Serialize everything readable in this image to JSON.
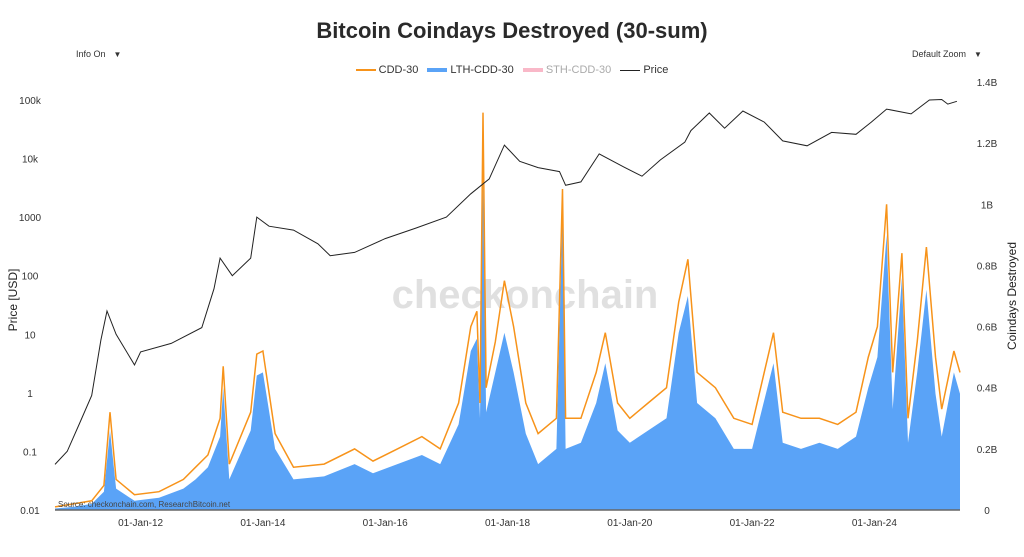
{
  "chart_data": {
    "type": "area",
    "title": "Bitcoin Coindays Destroyed (30-sum)",
    "controls": {
      "info": "Info On",
      "zoom": "Default Zoom"
    },
    "ylabel_left": "Price [USD]",
    "ylabel_right": "Coindays Destroyed",
    "y_left_scale": "log",
    "y_left_range": [
      0.01,
      100000
    ],
    "y_left_ticks": [
      "0.01",
      "0.1",
      "1",
      "10",
      "100",
      "1000",
      "10k",
      "100k"
    ],
    "y_right_range": [
      0,
      1.4
    ],
    "y_right_unit": "B",
    "y_right_ticks": [
      "0",
      "0.2B",
      "0.4B",
      "0.6B",
      "0.8B",
      "1B",
      "1.2B",
      "1.4B"
    ],
    "x_range": [
      2010.6,
      2025.4
    ],
    "x_ticks": [
      "01-Jan-12",
      "01-Jan-14",
      "01-Jan-16",
      "01-Jan-18",
      "01-Jan-20",
      "01-Jan-22",
      "01-Jan-24"
    ],
    "x_tick_years": [
      2012,
      2014,
      2016,
      2018,
      2020,
      2022,
      2024
    ],
    "legend_placement": "top-center",
    "watermark": "checkonchain",
    "source": "Source: checkonchain.com, ResearchBitcoin.net",
    "series": [
      {
        "name": "CDD-30",
        "color": "#f7931a",
        "axis": "right",
        "style": "line",
        "points": [
          [
            2010.6,
            0.01
          ],
          [
            2010.9,
            0.02
          ],
          [
            2011.2,
            0.03
          ],
          [
            2011.4,
            0.08
          ],
          [
            2011.5,
            0.32
          ],
          [
            2011.6,
            0.1
          ],
          [
            2011.9,
            0.05
          ],
          [
            2012.3,
            0.06
          ],
          [
            2012.7,
            0.1
          ],
          [
            2012.9,
            0.14
          ],
          [
            2013.1,
            0.18
          ],
          [
            2013.3,
            0.3
          ],
          [
            2013.35,
            0.47
          ],
          [
            2013.45,
            0.15
          ],
          [
            2013.8,
            0.32
          ],
          [
            2013.9,
            0.51
          ],
          [
            2014.0,
            0.52
          ],
          [
            2014.2,
            0.25
          ],
          [
            2014.5,
            0.14
          ],
          [
            2015.0,
            0.15
          ],
          [
            2015.5,
            0.2
          ],
          [
            2015.8,
            0.16
          ],
          [
            2016.2,
            0.2
          ],
          [
            2016.6,
            0.24
          ],
          [
            2016.9,
            0.2
          ],
          [
            2017.2,
            0.35
          ],
          [
            2017.4,
            0.6
          ],
          [
            2017.5,
            0.65
          ],
          [
            2017.55,
            0.35
          ],
          [
            2017.6,
            1.3
          ],
          [
            2017.65,
            0.4
          ],
          [
            2017.8,
            0.55
          ],
          [
            2017.95,
            0.75
          ],
          [
            2018.1,
            0.6
          ],
          [
            2018.3,
            0.35
          ],
          [
            2018.5,
            0.25
          ],
          [
            2018.8,
            0.3
          ],
          [
            2018.9,
            1.05
          ],
          [
            2018.95,
            0.3
          ],
          [
            2019.2,
            0.3
          ],
          [
            2019.45,
            0.45
          ],
          [
            2019.6,
            0.58
          ],
          [
            2019.8,
            0.35
          ],
          [
            2020.0,
            0.3
          ],
          [
            2020.3,
            0.35
          ],
          [
            2020.6,
            0.4
          ],
          [
            2020.8,
            0.68
          ],
          [
            2020.95,
            0.82
          ],
          [
            2021.1,
            0.45
          ],
          [
            2021.4,
            0.4
          ],
          [
            2021.7,
            0.3
          ],
          [
            2022.0,
            0.28
          ],
          [
            2022.35,
            0.58
          ],
          [
            2022.5,
            0.32
          ],
          [
            2022.8,
            0.3
          ],
          [
            2023.1,
            0.3
          ],
          [
            2023.4,
            0.28
          ],
          [
            2023.7,
            0.32
          ],
          [
            2023.9,
            0.5
          ],
          [
            2024.05,
            0.6
          ],
          [
            2024.2,
            1.0
          ],
          [
            2024.3,
            0.45
          ],
          [
            2024.45,
            0.84
          ],
          [
            2024.55,
            0.3
          ],
          [
            2024.7,
            0.55
          ],
          [
            2024.85,
            0.86
          ],
          [
            2025.0,
            0.5
          ],
          [
            2025.1,
            0.33
          ],
          [
            2025.3,
            0.52
          ],
          [
            2025.4,
            0.45
          ]
        ]
      },
      {
        "name": "LTH-CDD-30",
        "color": "#5aa3f7",
        "axis": "right",
        "style": "area",
        "points": [
          [
            2010.6,
            0.005
          ],
          [
            2010.9,
            0.01
          ],
          [
            2011.2,
            0.02
          ],
          [
            2011.4,
            0.06
          ],
          [
            2011.5,
            0.26
          ],
          [
            2011.6,
            0.07
          ],
          [
            2011.9,
            0.03
          ],
          [
            2012.3,
            0.04
          ],
          [
            2012.7,
            0.07
          ],
          [
            2012.9,
            0.1
          ],
          [
            2013.1,
            0.14
          ],
          [
            2013.3,
            0.24
          ],
          [
            2013.35,
            0.4
          ],
          [
            2013.45,
            0.1
          ],
          [
            2013.8,
            0.26
          ],
          [
            2013.9,
            0.44
          ],
          [
            2014.0,
            0.45
          ],
          [
            2014.2,
            0.2
          ],
          [
            2014.5,
            0.1
          ],
          [
            2015.0,
            0.11
          ],
          [
            2015.5,
            0.15
          ],
          [
            2015.8,
            0.12
          ],
          [
            2016.2,
            0.15
          ],
          [
            2016.6,
            0.18
          ],
          [
            2016.9,
            0.15
          ],
          [
            2017.2,
            0.28
          ],
          [
            2017.4,
            0.52
          ],
          [
            2017.5,
            0.56
          ],
          [
            2017.55,
            0.3
          ],
          [
            2017.6,
            1.12
          ],
          [
            2017.65,
            0.32
          ],
          [
            2017.8,
            0.45
          ],
          [
            2017.95,
            0.58
          ],
          [
            2018.1,
            0.45
          ],
          [
            2018.3,
            0.25
          ],
          [
            2018.5,
            0.15
          ],
          [
            2018.8,
            0.2
          ],
          [
            2018.9,
            0.98
          ],
          [
            2018.95,
            0.2
          ],
          [
            2019.2,
            0.22
          ],
          [
            2019.45,
            0.35
          ],
          [
            2019.6,
            0.48
          ],
          [
            2019.8,
            0.26
          ],
          [
            2020.0,
            0.22
          ],
          [
            2020.3,
            0.26
          ],
          [
            2020.6,
            0.3
          ],
          [
            2020.8,
            0.58
          ],
          [
            2020.95,
            0.7
          ],
          [
            2021.1,
            0.35
          ],
          [
            2021.4,
            0.3
          ],
          [
            2021.7,
            0.2
          ],
          [
            2022.0,
            0.2
          ],
          [
            2022.35,
            0.48
          ],
          [
            2022.5,
            0.22
          ],
          [
            2022.8,
            0.2
          ],
          [
            2023.1,
            0.22
          ],
          [
            2023.4,
            0.2
          ],
          [
            2023.7,
            0.24
          ],
          [
            2023.9,
            0.4
          ],
          [
            2024.05,
            0.5
          ],
          [
            2024.2,
            0.9
          ],
          [
            2024.3,
            0.33
          ],
          [
            2024.45,
            0.76
          ],
          [
            2024.55,
            0.22
          ],
          [
            2024.7,
            0.45
          ],
          [
            2024.85,
            0.72
          ],
          [
            2025.0,
            0.38
          ],
          [
            2025.1,
            0.24
          ],
          [
            2025.3,
            0.45
          ],
          [
            2025.4,
            0.38
          ]
        ]
      },
      {
        "name": "STH-CDD-30",
        "color": "#f9b8c8",
        "axis": "right",
        "style": "hidden",
        "points": []
      },
      {
        "name": "Price",
        "color": "#222222",
        "axis": "left",
        "style": "line",
        "points": [
          [
            2010.6,
            0.06
          ],
          [
            2010.8,
            0.1
          ],
          [
            2011.0,
            0.3
          ],
          [
            2011.2,
            0.9
          ],
          [
            2011.35,
            8
          ],
          [
            2011.45,
            25
          ],
          [
            2011.6,
            10
          ],
          [
            2011.9,
            3
          ],
          [
            2012.0,
            5
          ],
          [
            2012.5,
            7
          ],
          [
            2013.0,
            13
          ],
          [
            2013.2,
            60
          ],
          [
            2013.3,
            200
          ],
          [
            2013.5,
            100
          ],
          [
            2013.8,
            200
          ],
          [
            2013.9,
            1000
          ],
          [
            2014.1,
            700
          ],
          [
            2014.5,
            600
          ],
          [
            2014.9,
            350
          ],
          [
            2015.1,
            220
          ],
          [
            2015.5,
            250
          ],
          [
            2016.0,
            430
          ],
          [
            2016.5,
            650
          ],
          [
            2017.0,
            1000
          ],
          [
            2017.4,
            2500
          ],
          [
            2017.7,
            4500
          ],
          [
            2017.95,
            17000
          ],
          [
            2018.2,
            9000
          ],
          [
            2018.5,
            7000
          ],
          [
            2018.85,
            6000
          ],
          [
            2018.95,
            3500
          ],
          [
            2019.2,
            4000
          ],
          [
            2019.5,
            12000
          ],
          [
            2019.9,
            7200
          ],
          [
            2020.2,
            5000
          ],
          [
            2020.5,
            9500
          ],
          [
            2020.9,
            19000
          ],
          [
            2021.0,
            30000
          ],
          [
            2021.3,
            60000
          ],
          [
            2021.55,
            33000
          ],
          [
            2021.85,
            65000
          ],
          [
            2022.2,
            42000
          ],
          [
            2022.5,
            20000
          ],
          [
            2022.9,
            16500
          ],
          [
            2023.3,
            28000
          ],
          [
            2023.7,
            26000
          ],
          [
            2023.95,
            42000
          ],
          [
            2024.2,
            70000
          ],
          [
            2024.6,
            58000
          ],
          [
            2024.9,
            100000
          ],
          [
            2025.1,
            102000
          ],
          [
            2025.2,
            85000
          ],
          [
            2025.35,
            95000
          ]
        ]
      }
    ]
  }
}
